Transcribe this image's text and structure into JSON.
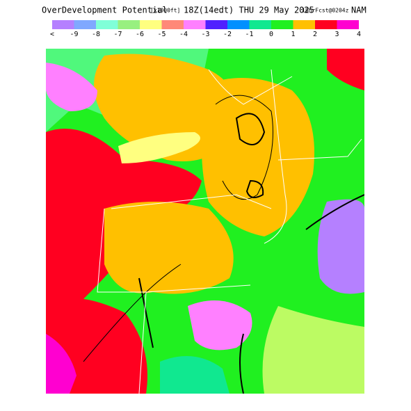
{
  "header": {
    "title": "OverDevelopment Potential",
    "units": "[x1000ft]",
    "time": "18Z(14edt) THU 29 May 2025",
    "forecast": "18hrFcst@0204z",
    "model": "NAM"
  },
  "legend": {
    "colors": [
      "#b580ff",
      "#80a8ff",
      "#80ffd8",
      "#98f080",
      "#ffff80",
      "#ff8878",
      "#ff80ff",
      "#5020ff",
      "#0090ff",
      "#10e890",
      "#20f020",
      "#ffc000",
      "#ff0020",
      "#ff00d0"
    ],
    "labels": [
      "<",
      "-9",
      "-8",
      "-7",
      "-6",
      "-5",
      "-4",
      "-3",
      "-2",
      "-1",
      "0",
      "1",
      "2",
      "3",
      "4"
    ]
  }
}
